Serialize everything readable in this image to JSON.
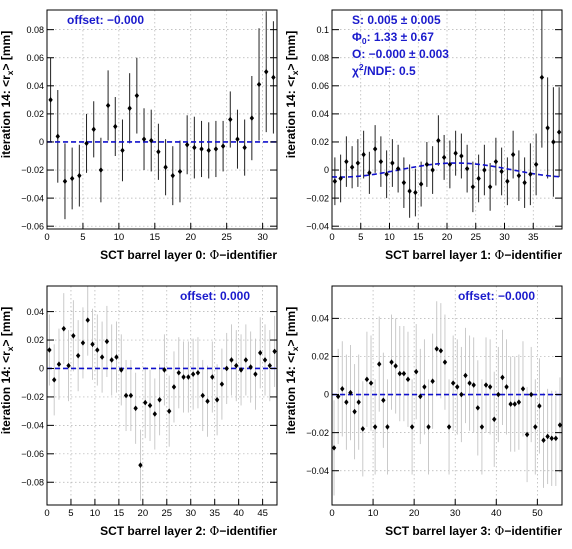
{
  "colors": {
    "frame": "#000000",
    "grid": "#b0b0b0",
    "fit": "#1010cc",
    "annotation": "#1a1acc",
    "errbar_dark": "#222222",
    "errbar_light": "#c4c4c4"
  },
  "chart_data": [
    {
      "type": "scatter",
      "ylabel_prefix": "iteration 14: <r",
      "ylabel_sub": "x",
      "ylabel_suffix": "> [mm]",
      "xlabel_prefix": "SCT barrel layer 0: ",
      "xlabel_symbol": "Φ",
      "xlabel_suffix": "−identifier",
      "xlim": [
        0,
        32
      ],
      "ylim": [
        -0.062,
        0.094
      ],
      "xticks": [
        0,
        5,
        10,
        15,
        20,
        25,
        30
      ],
      "yticks": [
        -0.06,
        -0.04,
        -0.02,
        0,
        0.02,
        0.04,
        0.06,
        0.08
      ],
      "ytick_labels": [
        "−0.06",
        "−0.04",
        "−0.02",
        "0",
        "0.02",
        "0.04",
        "0.06",
        "0.08"
      ],
      "grid": true,
      "errbar_style": "dark",
      "annotations": [
        {
          "text": "offset:  −0.000",
          "anchor": "top-left"
        }
      ],
      "fit": {
        "kind": "flat",
        "value": 0.0
      },
      "series": [
        {
          "x": [
            0.5,
            1.5,
            2.5,
            3.5,
            4.5,
            5.5,
            6.5,
            7.5,
            8.5,
            9.5,
            10.5,
            11.5,
            12.5,
            13.5,
            14.5,
            15.5,
            16.5,
            17.5,
            18.5,
            19.5,
            20.5,
            21.5,
            22.5,
            23.5,
            24.5,
            25.5,
            26.5,
            27.5,
            28.5,
            29.5,
            30.5,
            31.5
          ],
          "y": [
            0.03,
            0.004,
            -0.028,
            -0.026,
            -0.024,
            -0.001,
            0.009,
            -0.02,
            0.026,
            0.011,
            -0.006,
            0.024,
            0.033,
            0.002,
            0.001,
            -0.007,
            -0.018,
            -0.024,
            -0.021,
            -0.002,
            -0.004,
            -0.005,
            -0.006,
            -0.005,
            -0.003,
            0.016,
            0.002,
            -0.004,
            0.017,
            0.041,
            0.05,
            0.046
          ],
          "err": [
            0.03,
            0.033,
            0.027,
            0.022,
            0.022,
            0.021,
            0.02,
            0.023,
            0.025,
            0.021,
            0.022,
            0.025,
            0.027,
            0.022,
            0.022,
            0.02,
            0.02,
            0.021,
            0.022,
            0.021,
            0.022,
            0.02,
            0.02,
            0.02,
            0.018,
            0.02,
            0.021,
            0.02,
            0.03,
            0.04,
            0.043,
            0.04
          ]
        }
      ]
    },
    {
      "type": "scatter",
      "ylabel_prefix": "iteration 14: <r",
      "ylabel_sub": "x",
      "ylabel_suffix": "> [mm]",
      "xlabel_prefix": "SCT barrel layer 1: ",
      "xlabel_symbol": "Φ",
      "xlabel_suffix": "−identifier",
      "xlim": [
        0,
        40
      ],
      "ylim": [
        -0.042,
        0.114
      ],
      "xticks": [
        0,
        5,
        10,
        15,
        20,
        25,
        30,
        35
      ],
      "yticks": [
        -0.04,
        -0.02,
        0,
        0.02,
        0.04,
        0.06,
        0.08,
        0.1
      ],
      "ytick_labels": [
        "−0.04",
        "−0.02",
        "0",
        "0.02",
        "0.04",
        "0.06",
        "0.08",
        "0.1"
      ],
      "grid": true,
      "errbar_style": "dark",
      "annotations": [
        {
          "text": "S:  0.005 ± 0.005",
          "anchor": "top-left"
        },
        {
          "text_prefix": "Φ",
          "text_sub": "0",
          "text": ": 1.33 ± 0.67",
          "anchor": "top-left"
        },
        {
          "text": "O:  −0.000 ± 0.003",
          "anchor": "top-left"
        },
        {
          "text_prefix": "χ",
          "text_sup": "2",
          "text": "/NDF:  0.5",
          "anchor": "top-left"
        }
      ],
      "fit": {
        "kind": "sine",
        "S": 0.005,
        "phi0": 1.33,
        "O": 0.0
      },
      "series": [
        {
          "x": [
            0.5,
            1.5,
            2.5,
            3.5,
            4.5,
            5.5,
            6.5,
            7.5,
            8.5,
            9.5,
            10.5,
            11.5,
            12.5,
            13.5,
            14.5,
            15.5,
            16.5,
            17.5,
            18.5,
            19.5,
            20.5,
            21.5,
            22.5,
            23.5,
            24.5,
            25.5,
            26.5,
            27.5,
            28.5,
            29.5,
            30.5,
            31.5,
            32.5,
            33.5,
            34.5,
            35.5,
            36.5,
            37.5,
            38.5,
            39.5
          ],
          "y": [
            -0.008,
            -0.006,
            0.006,
            0.002,
            0.005,
            0.011,
            -0.002,
            0.015,
            0.006,
            -0.003,
            0.005,
            0.001,
            -0.009,
            -0.015,
            -0.016,
            -0.01,
            0.004,
            0.0,
            0.021,
            0.009,
            0.004,
            0.012,
            0.01,
            0.001,
            -0.012,
            -0.006,
            0.0,
            -0.012,
            0.006,
            -0.001,
            -0.008,
            0.011,
            -0.004,
            -0.009,
            -0.003,
            0.004,
            0.066,
            0.03,
            0.02,
            0.027
          ],
          "err": [
            0.017,
            0.017,
            0.018,
            0.015,
            0.017,
            0.017,
            0.015,
            0.017,
            0.018,
            0.017,
            0.017,
            0.017,
            0.018,
            0.019,
            0.017,
            0.016,
            0.016,
            0.017,
            0.018,
            0.016,
            0.017,
            0.016,
            0.016,
            0.017,
            0.018,
            0.017,
            0.018,
            0.017,
            0.017,
            0.017,
            0.017,
            0.017,
            0.018,
            0.018,
            0.022,
            0.022,
            0.05,
            0.036,
            0.039,
            0.032
          ]
        }
      ]
    },
    {
      "type": "scatter",
      "ylabel_prefix": "iteration 14: <r",
      "ylabel_sub": "x",
      "ylabel_suffix": "> [mm]",
      "xlabel_prefix": "SCT barrel layer 2: ",
      "xlabel_symbol": "Φ",
      "xlabel_suffix": "−identifier",
      "xlim": [
        0,
        48
      ],
      "ylim": [
        -0.096,
        0.058
      ],
      "xticks": [
        0,
        5,
        10,
        15,
        20,
        25,
        30,
        35,
        40,
        45
      ],
      "yticks": [
        -0.08,
        -0.06,
        -0.04,
        -0.02,
        0,
        0.02,
        0.04
      ],
      "ytick_labels": [
        "−0.08",
        "−0.06",
        "−0.04",
        "−0.02",
        "0",
        "0.02",
        "0.04"
      ],
      "grid": true,
      "errbar_style": "light",
      "annotations": [
        {
          "text": "offset:  0.000",
          "anchor": "top-right"
        }
      ],
      "fit": {
        "kind": "flat",
        "value": 0.0
      },
      "series": [
        {
          "x": [
            0.5,
            1.5,
            2.5,
            3.5,
            4.5,
            5.5,
            6.5,
            7.5,
            8.5,
            9.5,
            10.5,
            11.5,
            12.5,
            13.5,
            14.5,
            15.5,
            16.5,
            17.5,
            18.5,
            19.5,
            20.5,
            21.5,
            22.5,
            23.5,
            24.5,
            25.5,
            26.5,
            27.5,
            28.5,
            29.5,
            30.5,
            31.5,
            32.5,
            33.5,
            34.5,
            35.5,
            36.5,
            37.5,
            38.5,
            39.5,
            40.5,
            41.5,
            42.5,
            43.5,
            44.5,
            45.5,
            46.5,
            47.5
          ],
          "y": [
            0.013,
            -0.008,
            0.003,
            0.028,
            0.002,
            0.023,
            0.009,
            0.018,
            0.034,
            0.017,
            0.013,
            0.008,
            0.019,
            0.006,
            0.008,
            -0.001,
            -0.019,
            -0.019,
            -0.028,
            -0.068,
            -0.024,
            -0.026,
            -0.032,
            -0.022,
            -0.001,
            -0.03,
            -0.013,
            -0.003,
            -0.006,
            -0.006,
            -0.004,
            -0.003,
            -0.019,
            -0.023,
            -0.006,
            -0.022,
            -0.011,
            0.0,
            0.006,
            0.002,
            -0.001,
            0.006,
            0.001,
            -0.004,
            0.011,
            0.006,
            0.002,
            0.012
          ],
          "err": [
            0.025,
            0.025,
            0.025,
            0.025,
            0.025,
            0.025,
            0.025,
            0.025,
            0.025,
            0.025,
            0.025,
            0.025,
            0.025,
            0.025,
            0.025,
            0.025,
            0.025,
            0.025,
            0.025,
            0.025,
            0.025,
            0.025,
            0.025,
            0.025,
            0.025,
            0.025,
            0.025,
            0.025,
            0.025,
            0.025,
            0.025,
            0.025,
            0.025,
            0.025,
            0.025,
            0.025,
            0.025,
            0.025,
            0.025,
            0.025,
            0.025,
            0.025,
            0.025,
            0.025,
            0.025,
            0.025,
            0.025,
            0.025
          ]
        }
      ]
    },
    {
      "type": "scatter",
      "ylabel_prefix": "iteration 14: <r",
      "ylabel_sub": "x",
      "ylabel_suffix": "> [mm]",
      "xlabel_prefix": "SCT barrel layer 3: ",
      "xlabel_symbol": "Φ",
      "xlabel_suffix": "−identifier",
      "xlim": [
        0,
        56
      ],
      "ylim": [
        -0.058,
        0.057
      ],
      "xticks": [
        0,
        10,
        20,
        30,
        40,
        50
      ],
      "yticks": [
        -0.04,
        -0.02,
        0,
        0.02,
        0.04
      ],
      "ytick_labels": [
        "−0.04",
        "−0.02",
        "0",
        "0.02",
        "0.04"
      ],
      "grid": true,
      "errbar_style": "light",
      "annotations": [
        {
          "text": "offset:  −0.000",
          "anchor": "top-right"
        }
      ],
      "fit": {
        "kind": "flat",
        "value": 0.0
      },
      "series": [
        {
          "x": [
            0.5,
            1.5,
            2.5,
            3.5,
            4.5,
            5.5,
            6.5,
            7.5,
            8.5,
            9.5,
            10.5,
            11.5,
            12.5,
            13.5,
            14.5,
            15.5,
            16.5,
            17.5,
            18.5,
            19.5,
            20.5,
            21.5,
            22.5,
            23.5,
            24.5,
            25.5,
            26.5,
            27.5,
            28.5,
            29.5,
            30.5,
            31.5,
            32.5,
            33.5,
            34.5,
            35.5,
            36.5,
            37.5,
            38.5,
            39.5,
            40.5,
            41.5,
            42.5,
            43.5,
            44.5,
            45.5,
            46.5,
            47.5,
            48.5,
            49.5,
            50.5,
            51.5,
            52.5,
            53.5,
            54.5,
            55.5
          ],
          "y": [
            -0.028,
            -0.001,
            0.003,
            -0.004,
            0.001,
            -0.009,
            -0.004,
            -0.018,
            0.008,
            0.006,
            -0.017,
            0.016,
            -0.003,
            -0.017,
            0.017,
            0.015,
            0.011,
            0.011,
            0.008,
            -0.017,
            0.012,
            -0.001,
            0.004,
            -0.017,
            0.007,
            0.024,
            0.023,
            0.017,
            -0.017,
            0.006,
            0.004,
            0.0,
            0.01,
            0.006,
            0.005,
            -0.007,
            -0.017,
            0.005,
            0.004,
            -0.013,
            0.0,
            0.009,
            0.004,
            -0.005,
            -0.005,
            -0.004,
            0.003,
            -0.021,
            0.0,
            -0.017,
            -0.006,
            -0.024,
            -0.022,
            -0.023,
            -0.023,
            -0.016
          ],
          "err": [
            0.025,
            0.025,
            0.025,
            0.025,
            0.025,
            0.025,
            0.025,
            0.025,
            0.025,
            0.025,
            0.025,
            0.025,
            0.025,
            0.025,
            0.025,
            0.025,
            0.025,
            0.025,
            0.025,
            0.025,
            0.025,
            0.025,
            0.025,
            0.025,
            0.025,
            0.025,
            0.025,
            0.025,
            0.025,
            0.025,
            0.025,
            0.025,
            0.025,
            0.025,
            0.025,
            0.025,
            0.025,
            0.025,
            0.025,
            0.025,
            0.025,
            0.025,
            0.025,
            0.025,
            0.025,
            0.025,
            0.025,
            0.025,
            0.025,
            0.025,
            0.025,
            0.025,
            0.025,
            0.025,
            0.025,
            0.025
          ]
        }
      ]
    }
  ]
}
